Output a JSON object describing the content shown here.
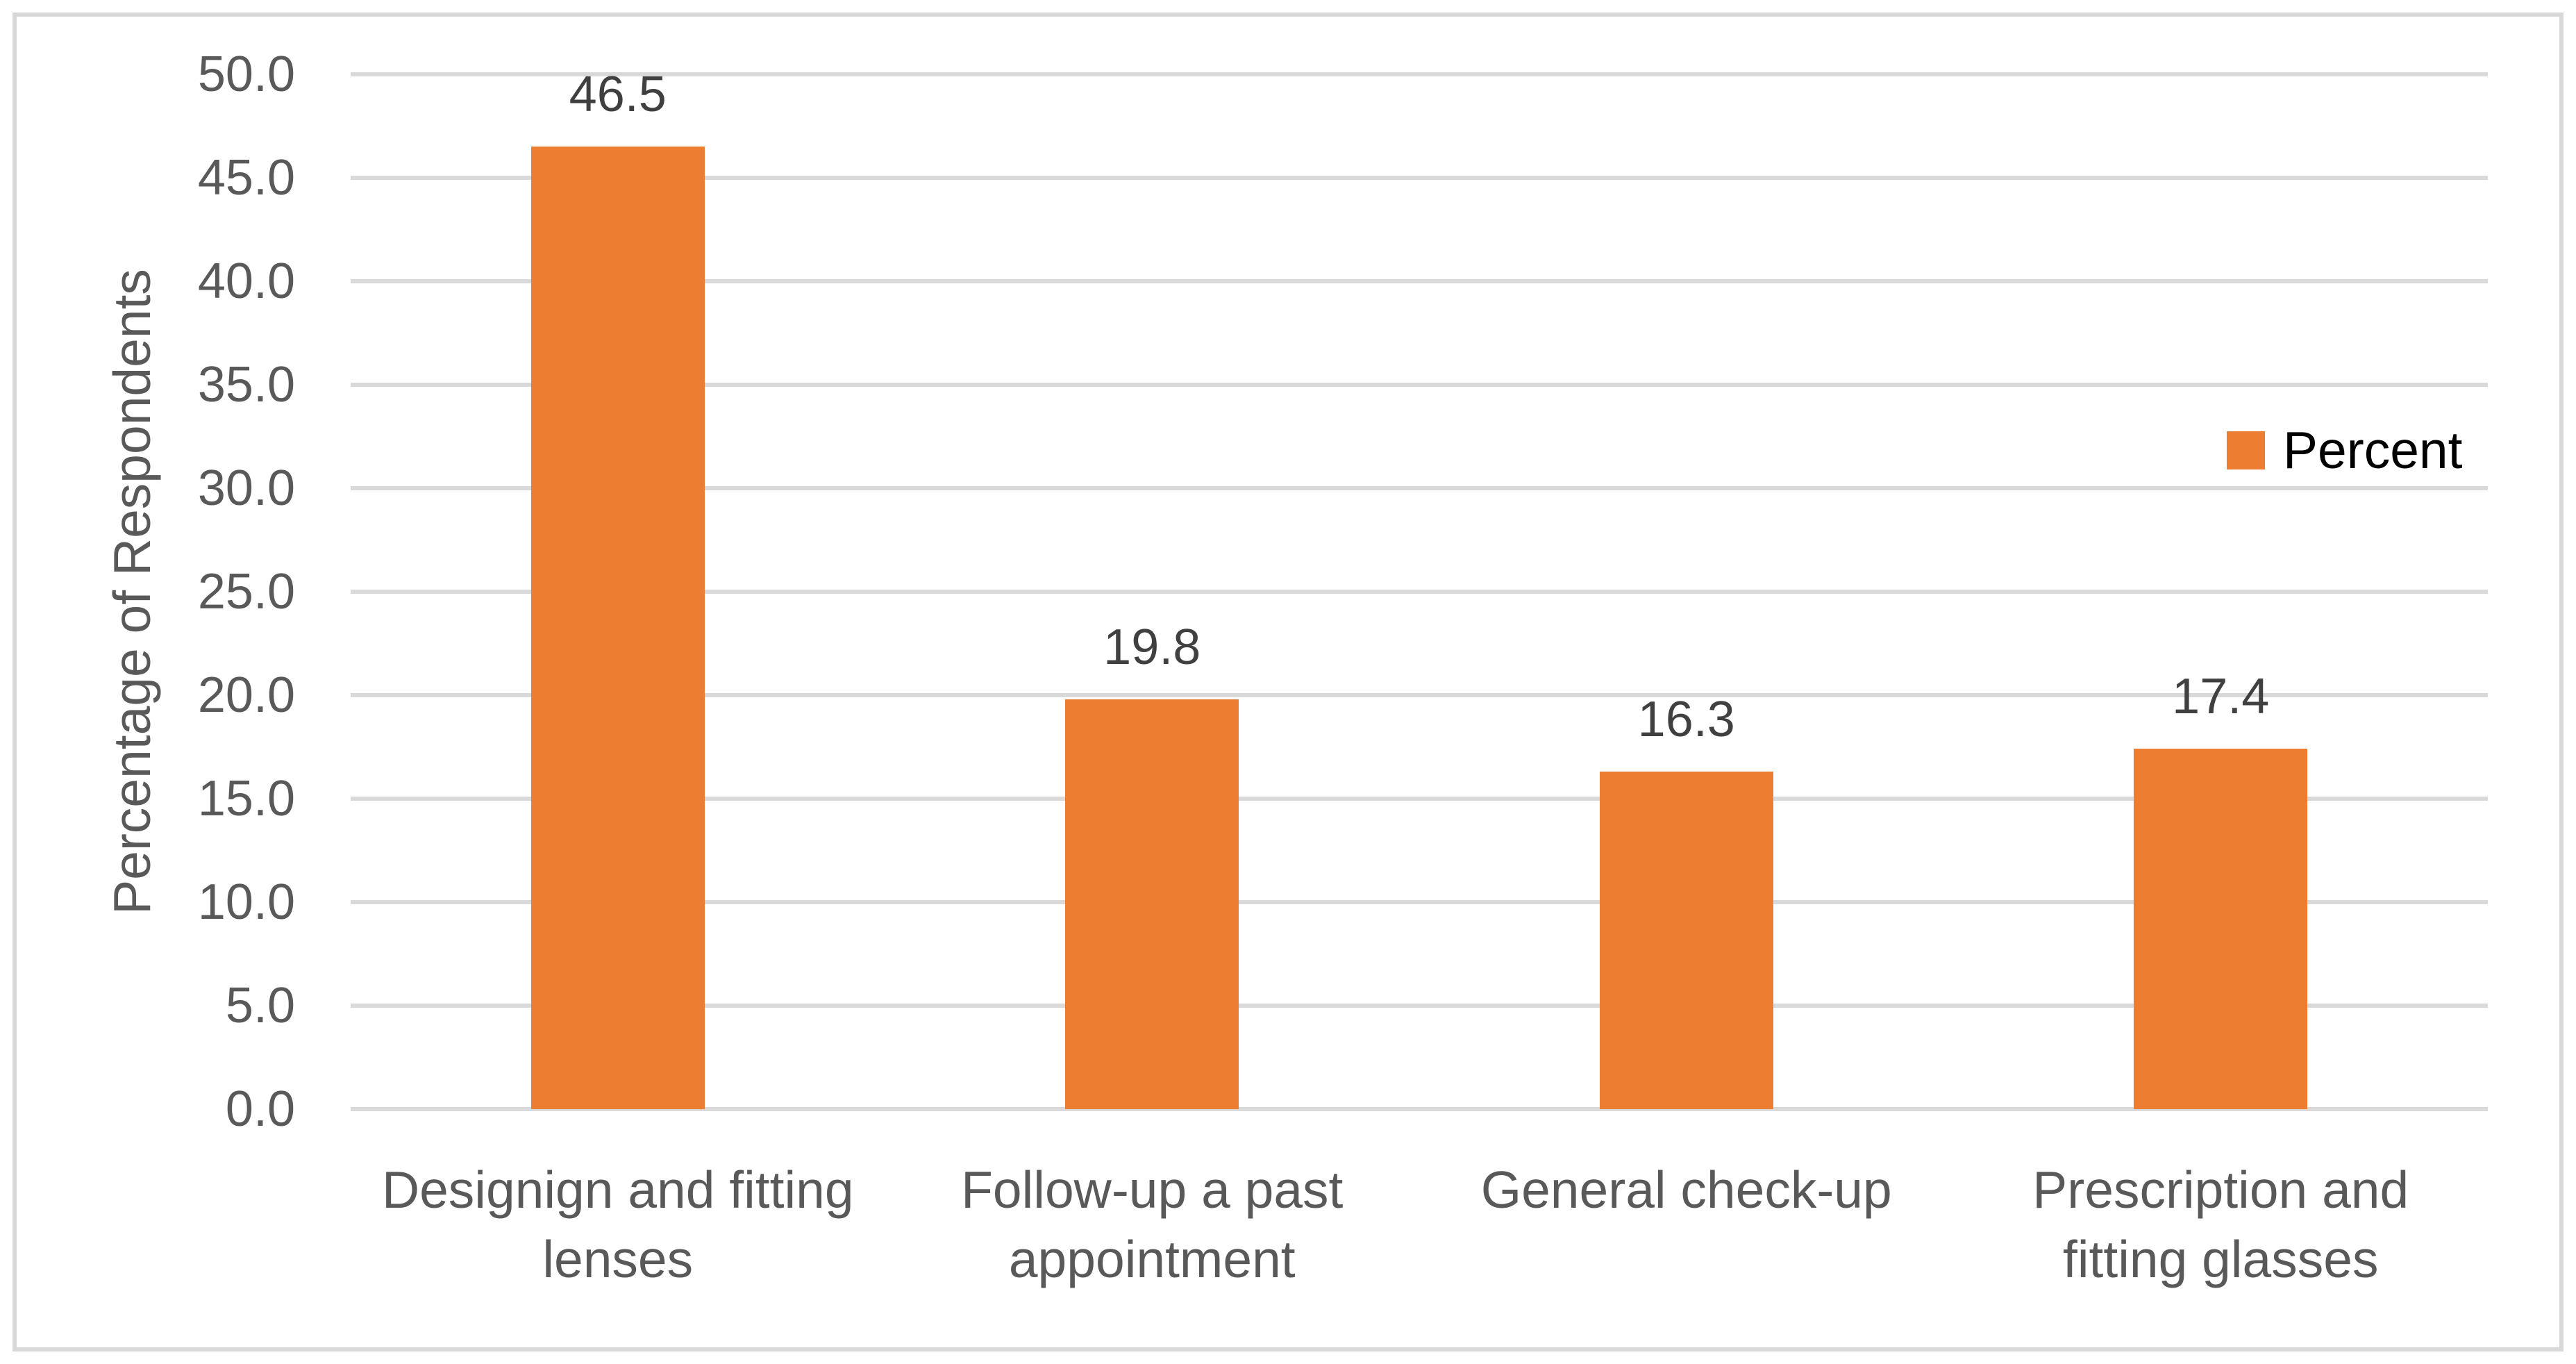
{
  "chart_data": {
    "type": "bar",
    "title": "",
    "categories": [
      "Designign and fitting lenses",
      "Follow-up a past appointment",
      "General check-up",
      "Prescription and fitting glasses"
    ],
    "categories_wrapped": [
      [
        "Designign and fitting",
        "lenses"
      ],
      [
        "Follow-up a past",
        "appointment"
      ],
      [
        "General check-up"
      ],
      [
        "Prescription and",
        "fitting glasses"
      ]
    ],
    "series": [
      {
        "name": "Percent",
        "values": [
          46.5,
          19.8,
          16.3,
          17.4
        ]
      }
    ],
    "data_labels": [
      "46.5",
      "19.8",
      "16.3",
      "17.4"
    ],
    "xlabel": "",
    "ylabel": "Percentage of Respondents",
    "ylim": [
      0,
      50
    ],
    "ytick_step": 5,
    "ytick_labels": [
      "0.0",
      "5.0",
      "10.0",
      "15.0",
      "20.0",
      "25.0",
      "30.0",
      "35.0",
      "40.0",
      "45.0",
      "50.0"
    ],
    "grid": true,
    "legend_position": "right-middle",
    "colors": {
      "bar_fill": "#ED7D31",
      "gridline": "#D9D9D9",
      "tick_label": "#595959",
      "axis_title": "#595959",
      "category_label": "#595959",
      "data_label": "#404040",
      "legend_text": "#000000",
      "chart_border": "#D8D8D8",
      "background": "#FFFFFF"
    }
  },
  "legend": {
    "label": "Percent"
  },
  "y_axis": {
    "title": "Percentage of Respondents"
  }
}
